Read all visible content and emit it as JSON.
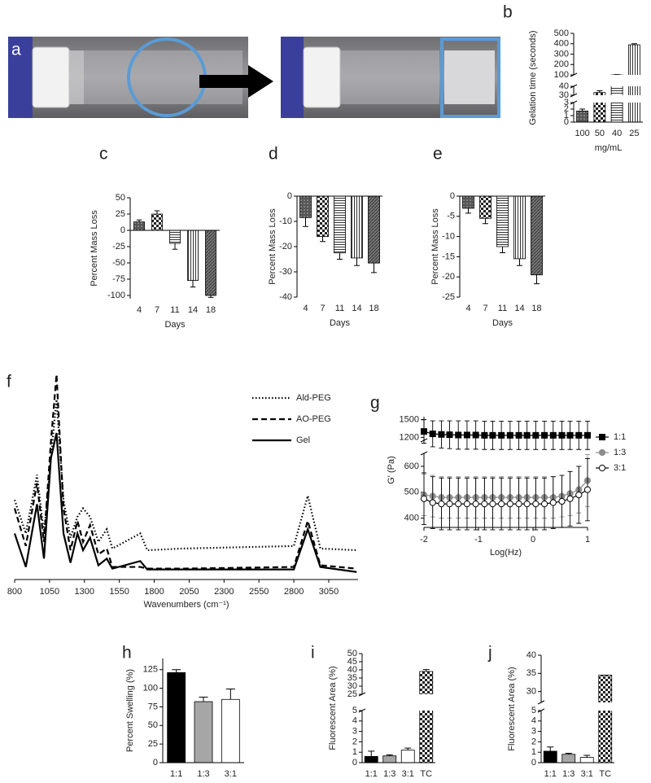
{
  "photo": {
    "label": "a"
  },
  "chart_data": [
    {
      "type": "bar",
      "label": "b",
      "ylabel": "Gelation time (seconds)",
      "xlabel": "mg/mL",
      "categories": [
        "100",
        "50",
        "40",
        "25"
      ],
      "values": [
        1.7,
        33,
        100,
        390
      ],
      "errors": [
        0.3,
        2,
        3,
        10
      ],
      "fills": [
        "dots",
        "checker",
        "hlines",
        "vlines"
      ],
      "ylim": [
        0,
        500
      ],
      "axis_breaks": [
        [
          3,
          30
        ],
        [
          40,
          100
        ]
      ],
      "yticks": [
        0,
        1,
        2,
        3,
        30,
        40,
        100,
        200,
        300,
        400,
        500
      ]
    },
    {
      "type": "bar",
      "label": "c",
      "ylabel": "Percent Mass Loss",
      "xlabel": "Days",
      "categories": [
        "4",
        "7",
        "11",
        "14",
        "18"
      ],
      "values": [
        13,
        25,
        -20,
        -77,
        -100
      ],
      "errors": [
        3,
        5,
        9,
        10,
        3
      ],
      "fills": [
        "dots",
        "checker",
        "hlines",
        "vlines",
        "diag"
      ],
      "ylim": [
        -105,
        50
      ],
      "yticks": [
        -100,
        -75,
        -50,
        -25,
        0,
        25,
        50
      ]
    },
    {
      "type": "bar",
      "label": "d",
      "ylabel": "Percent Mass Loss",
      "xlabel": "Days",
      "categories": [
        "4",
        "7",
        "11",
        "14",
        "18"
      ],
      "values": [
        -8.5,
        -16,
        -22.5,
        -24.5,
        -26.5
      ],
      "errors": [
        3.5,
        2,
        2.5,
        3,
        3.8
      ],
      "fills": [
        "dots",
        "checker",
        "hlines",
        "vlines",
        "diag"
      ],
      "ylim": [
        -40,
        0
      ],
      "yticks": [
        -40,
        -30,
        -20,
        -10,
        0
      ]
    },
    {
      "type": "bar",
      "label": "e",
      "ylabel": "Percent Mass Loss",
      "xlabel": "Days",
      "categories": [
        "4",
        "7",
        "11",
        "14",
        "18"
      ],
      "values": [
        -3,
        -5.5,
        -12.5,
        -15.5,
        -19.5
      ],
      "errors": [
        1.2,
        1.3,
        1.5,
        1.7,
        2.2
      ],
      "fills": [
        "dots",
        "checker",
        "hlines",
        "vlines",
        "diag"
      ],
      "ylim": [
        -25,
        0
      ],
      "yticks": [
        -25,
        -20,
        -15,
        -10,
        -5,
        0
      ]
    },
    {
      "type": "line",
      "label": "f",
      "xlabel": "Wavenumbers (cm⁻¹)",
      "legend": "top-right",
      "x": [
        800,
        880,
        960,
        1010,
        1060,
        1100,
        1150,
        1200,
        1250,
        1290,
        1340,
        1400,
        1460,
        1500,
        1700,
        1750,
        2000,
        2800,
        2900,
        2990,
        3250
      ],
      "xlim": [
        800,
        3260
      ],
      "xticks": [
        800,
        1050,
        1300,
        1550,
        1800,
        2050,
        2300,
        2550,
        2800,
        3050
      ],
      "ylim": [
        -5,
        240
      ],
      "series": [
        {
          "name": "Ald-PEG",
          "color": "#000000",
          "dash": "dotted",
          "values": [
            90,
            50,
            120,
            50,
            140,
            210,
            90,
            45,
            70,
            80,
            70,
            40,
            55,
            32,
            50,
            30,
            32,
            35,
            95,
            32,
            30
          ]
        },
        {
          "name": "AO-PEG",
          "color": "#000000",
          "dash": "dashed",
          "values": [
            80,
            35,
            110,
            40,
            160,
            240,
            80,
            30,
            65,
            40,
            60,
            25,
            32,
            10,
            10,
            8,
            8,
            10,
            65,
            12,
            8
          ]
        },
        {
          "name": "Gel",
          "color": "#000000",
          "dash": "solid",
          "values": [
            50,
            10,
            85,
            20,
            140,
            170,
            50,
            15,
            50,
            30,
            45,
            12,
            20,
            8,
            17,
            7,
            7,
            7,
            55,
            10,
            4
          ]
        }
      ]
    },
    {
      "type": "line",
      "label": "g",
      "ylabel": "G' (Pa)",
      "xlabel": "Log(Hz)",
      "legend": "right",
      "x": [
        -2,
        -1.84,
        -1.68,
        -1.53,
        -1.37,
        -1.21,
        -1.05,
        -0.89,
        -0.74,
        -0.58,
        -0.42,
        -0.26,
        -0.11,
        0.05,
        0.21,
        0.37,
        0.53,
        0.68,
        0.84,
        1
      ],
      "xlim": [
        -2,
        1
      ],
      "xticks": [
        -2,
        -1,
        0,
        1
      ],
      "ylim": [
        380,
        1550
      ],
      "axis_breaks": [
        [
          650,
          1150
        ]
      ],
      "yticks": [
        400,
        500,
        600,
        1200,
        1500
      ],
      "series": [
        {
          "name": "1:1",
          "color": "#000000",
          "marker": "square",
          "marker_fill": "#000000",
          "values": [
            1300,
            1260,
            1250,
            1245,
            1240,
            1240,
            1240,
            1235,
            1235,
            1235,
            1235,
            1235,
            1235,
            1235,
            1235,
            1235,
            1235,
            1235,
            1235,
            1235
          ],
          "errors": [
            200,
            220,
            230,
            235,
            240,
            240,
            240,
            240,
            240,
            240,
            240,
            240,
            240,
            240,
            240,
            240,
            240,
            240,
            240,
            240
          ]
        },
        {
          "name": "1:3",
          "color": "#8c8c8c",
          "marker": "circle",
          "marker_fill": "#8c8c8c",
          "values": [
            490,
            485,
            480,
            480,
            480,
            480,
            480,
            480,
            480,
            480,
            480,
            480,
            480,
            480,
            480,
            480,
            485,
            495,
            510,
            545
          ],
          "errors": [
            80,
            80,
            80,
            80,
            80,
            80,
            80,
            80,
            80,
            80,
            80,
            80,
            80,
            80,
            80,
            80,
            80,
            85,
            90,
            100
          ]
        },
        {
          "name": "3:1",
          "color": "#000000",
          "marker": "circle",
          "marker_fill": "#ffffff",
          "values": [
            475,
            460,
            455,
            455,
            455,
            455,
            455,
            455,
            455,
            455,
            455,
            455,
            455,
            455,
            455,
            460,
            465,
            475,
            490,
            510
          ],
          "errors": [
            100,
            100,
            100,
            100,
            100,
            100,
            100,
            100,
            100,
            100,
            100,
            100,
            100,
            100,
            100,
            100,
            100,
            105,
            110,
            120
          ]
        }
      ]
    },
    {
      "type": "bar",
      "label": "h",
      "ylabel": "Percent Swelling (%)",
      "categories": [
        "1:1",
        "1:3",
        "3:1"
      ],
      "values": [
        121,
        82,
        85
      ],
      "errors": [
        4,
        6,
        14
      ],
      "fills": [
        "#000000",
        "#a6a6a6",
        "#ffffff"
      ],
      "ylim": [
        0,
        140
      ],
      "yticks": [
        0,
        25,
        50,
        75,
        100,
        125
      ]
    },
    {
      "type": "bar",
      "label": "i",
      "ylabel": "Fluorescent Area (%)",
      "categories": [
        "1:1",
        "1:3",
        "3:1",
        "TC"
      ],
      "values": [
        0.6,
        0.65,
        1.2,
        39
      ],
      "errors": [
        0.5,
        0.1,
        0.2,
        1.2
      ],
      "fills": [
        "#000000",
        "#a6a6a6",
        "#ffffff",
        "checker"
      ],
      "ylim": [
        0,
        50
      ],
      "axis_breaks": [
        [
          5,
          25
        ]
      ],
      "yticks": [
        0,
        1,
        2,
        3,
        4,
        5,
        25,
        30,
        35,
        40,
        45,
        50
      ]
    },
    {
      "type": "bar",
      "label": "j",
      "ylabel": "Fluorescent Area (%)",
      "categories": [
        "1:1",
        "1:3",
        "3:1",
        "TC"
      ],
      "values": [
        1.1,
        0.8,
        0.5,
        34.5
      ],
      "errors": [
        0.4,
        0.1,
        0.2,
        0
      ],
      "fills": [
        "#000000",
        "#a6a6a6",
        "#ffffff",
        "checker"
      ],
      "ylim": [
        0,
        40
      ],
      "axis_breaks": [
        [
          5,
          27
        ]
      ],
      "yticks": [
        0,
        1,
        2,
        3,
        4,
        5,
        30,
        35,
        40
      ]
    }
  ]
}
